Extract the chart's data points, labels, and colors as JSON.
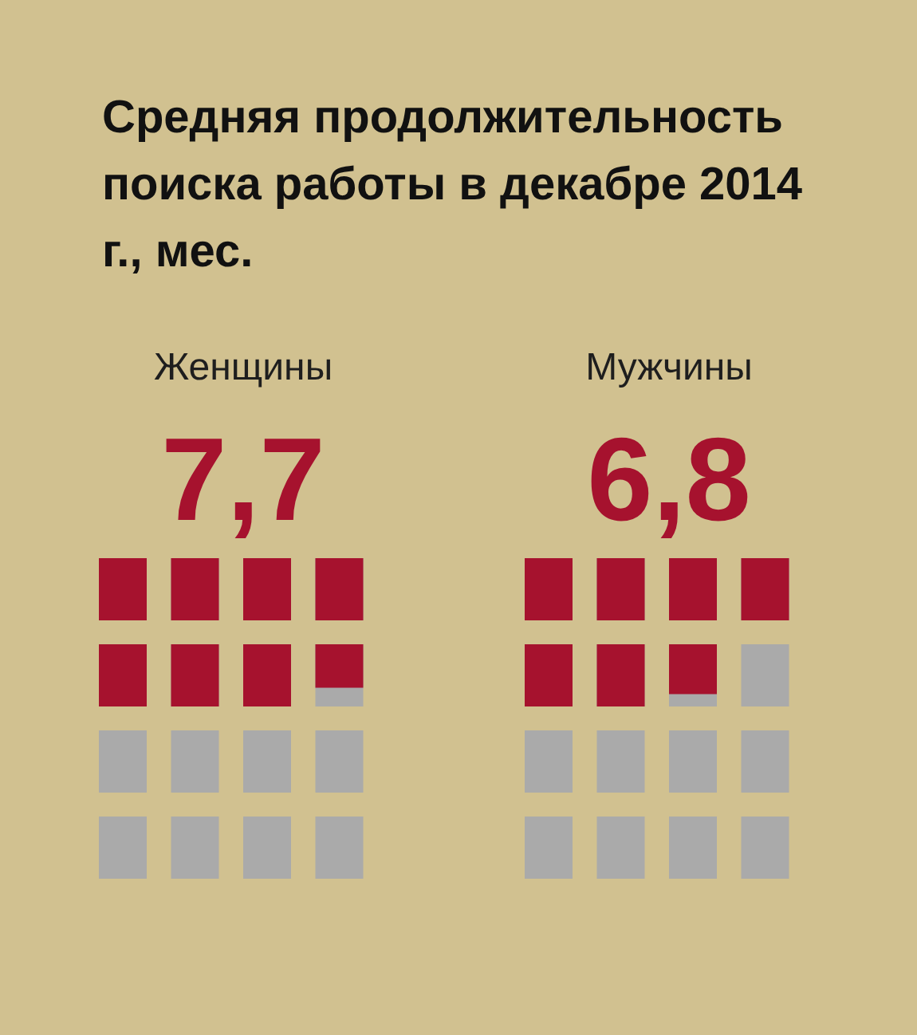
{
  "chart_data": {
    "type": "other",
    "title": "Средняя продолжительность поиска работы в декабре 2014 г., мес.",
    "categories": [
      "Женщины",
      "Мужчины"
    ],
    "values": [
      7.7,
      6.8
    ],
    "value_labels": [
      "7,7",
      "6,8"
    ],
    "color": "#a6122e"
  }
}
